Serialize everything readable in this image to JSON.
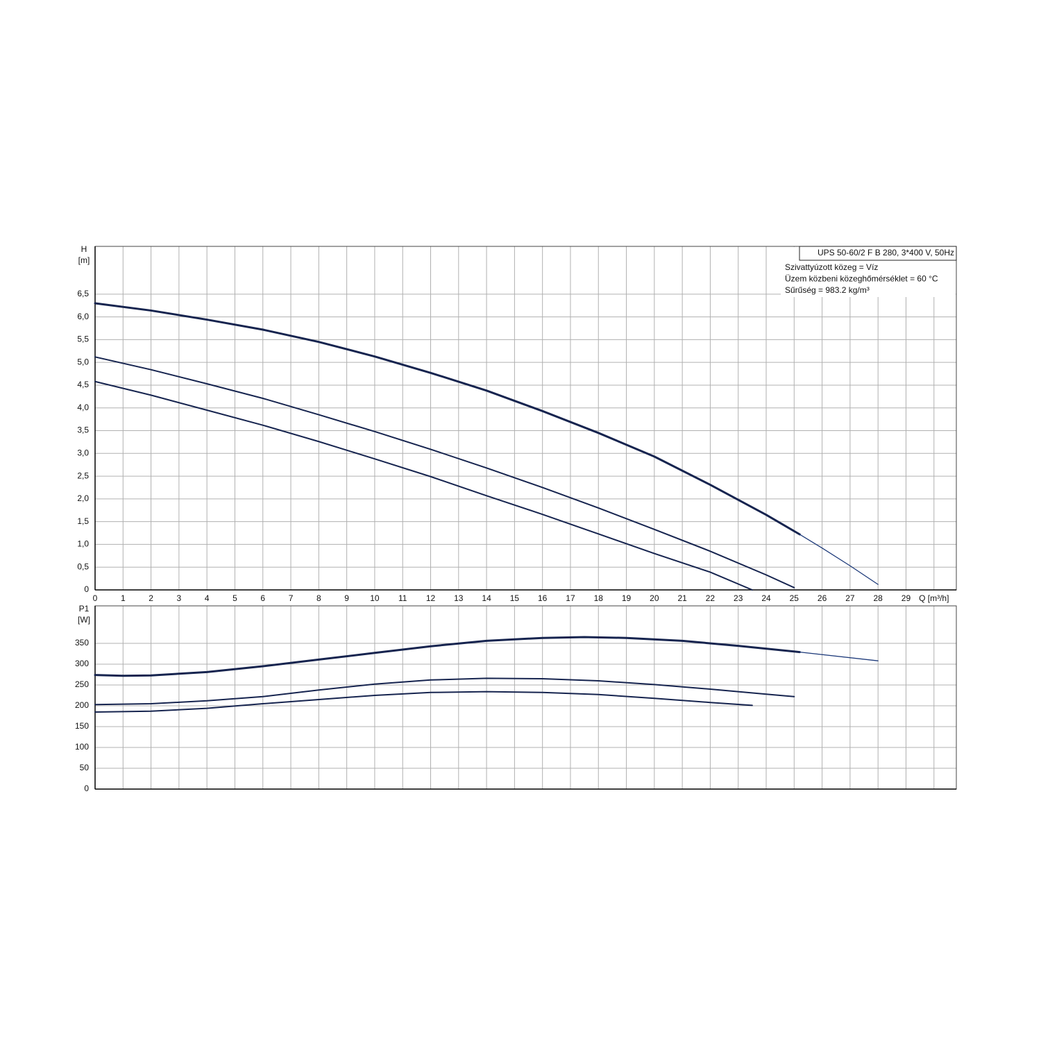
{
  "chart_data": [
    {
      "type": "line",
      "ylabel": [
        "H",
        "[m]"
      ],
      "info_box": {
        "title": "UPS 50-60/2 F B 280, 3*400 V, 50Hz",
        "lines": [
          "Szivattyúzott közeg = Víz",
          "Üzem közbeni közeghőmérséklet = 60 °C",
          "Sűrűség = 983.2 kg/m³"
        ]
      },
      "xlim": [
        0,
        30.8
      ],
      "xticks": [
        0,
        1,
        2,
        3,
        4,
        5,
        6,
        7,
        8,
        9,
        10,
        11,
        12,
        13,
        14,
        15,
        16,
        17,
        18,
        19,
        20,
        21,
        22,
        23,
        24,
        25,
        26,
        27,
        28,
        29,
        {
          "value": 30,
          "label": "Q [m³/h]"
        }
      ],
      "show_xtick_labels": true,
      "ylim": [
        0,
        7.55
      ],
      "yticks": [
        0,
        {
          "value": 0.5,
          "label": "0,5"
        },
        {
          "value": 1,
          "label": "1,0"
        },
        {
          "value": 1.5,
          "label": "1,5"
        },
        {
          "value": 2,
          "label": "2,0"
        },
        {
          "value": 2.5,
          "label": "2,5"
        },
        {
          "value": 3,
          "label": "3,0"
        },
        {
          "value": 3.5,
          "label": "3,5"
        },
        {
          "value": 4,
          "label": "4,0"
        },
        {
          "value": 4.5,
          "label": "4,5"
        },
        {
          "value": 5,
          "label": "5,0"
        },
        {
          "value": 5.5,
          "label": "5,5"
        },
        {
          "value": 6,
          "label": "6,0"
        },
        {
          "value": 6.5,
          "label": "6,5"
        }
      ],
      "grid": true,
      "series": [
        {
          "color": "#16244f",
          "width": 3,
          "x": [
            0,
            2,
            4,
            6,
            8,
            10,
            12,
            14,
            16,
            18,
            20,
            22,
            24,
            25.2
          ],
          "values": [
            6.3,
            6.14,
            5.94,
            5.72,
            5.45,
            5.13,
            4.77,
            4.38,
            3.93,
            3.45,
            2.93,
            2.31,
            1.65,
            1.22
          ]
        },
        {
          "color": "#1d3a7a",
          "width": 1.3,
          "x": [
            25.2,
            26,
            27,
            28
          ],
          "values": [
            1.22,
            0.92,
            0.53,
            0.12
          ]
        },
        {
          "color": "#16244f",
          "width": 2,
          "x": [
            0,
            2,
            4,
            6,
            8,
            10,
            12,
            14,
            16,
            18,
            20,
            22,
            24,
            25
          ],
          "values": [
            5.12,
            4.84,
            4.53,
            4.21,
            3.85,
            3.48,
            3.09,
            2.68,
            2.25,
            1.8,
            1.33,
            0.85,
            0.33,
            0.05
          ]
        },
        {
          "color": "#16244f",
          "width": 2,
          "x": [
            0,
            2,
            4,
            6,
            8,
            10,
            12,
            14,
            16,
            18,
            20,
            22,
            23.5
          ],
          "values": [
            4.58,
            4.28,
            3.95,
            3.62,
            3.26,
            2.88,
            2.49,
            2.07,
            1.66,
            1.23,
            0.8,
            0.39,
            0
          ]
        }
      ]
    },
    {
      "type": "line",
      "ylabel": [
        "P1",
        "[W]"
      ],
      "xlim": [
        0,
        30.8
      ],
      "xticks": [
        0,
        1,
        2,
        3,
        4,
        5,
        6,
        7,
        8,
        9,
        10,
        11,
        12,
        13,
        14,
        15,
        16,
        17,
        18,
        19,
        20,
        21,
        22,
        23,
        24,
        25,
        26,
        27,
        28,
        29,
        30
      ],
      "show_xtick_labels": false,
      "ylim": [
        0,
        440
      ],
      "yticks": [
        0,
        50,
        100,
        150,
        200,
        250,
        300,
        350
      ],
      "grid": true,
      "series": [
        {
          "color": "#16244f",
          "width": 3,
          "x": [
            0,
            1,
            2,
            4,
            6,
            8,
            10,
            12,
            14,
            16,
            17.5,
            19,
            21,
            23,
            25.2
          ],
          "values": [
            274,
            272,
            273,
            281,
            295,
            311,
            327,
            343,
            356,
            363,
            365,
            363,
            356,
            344,
            329
          ]
        },
        {
          "color": "#1d3a7a",
          "width": 1.3,
          "x": [
            25.2,
            28
          ],
          "values": [
            329,
            308
          ]
        },
        {
          "color": "#16244f",
          "width": 2,
          "x": [
            0,
            2,
            4,
            6,
            8,
            10,
            12,
            14,
            16,
            18,
            20,
            22,
            24,
            25
          ],
          "values": [
            203,
            205,
            212,
            222,
            238,
            252,
            262,
            266,
            265,
            260,
            251,
            240,
            228,
            222
          ]
        },
        {
          "color": "#16244f",
          "width": 2,
          "x": [
            0,
            2,
            4,
            6,
            8,
            10,
            12,
            14,
            16,
            18,
            20,
            22,
            23.5
          ],
          "values": [
            185,
            187,
            194,
            205,
            215,
            225,
            232,
            234,
            232,
            227,
            218,
            208,
            201
          ]
        }
      ]
    }
  ]
}
